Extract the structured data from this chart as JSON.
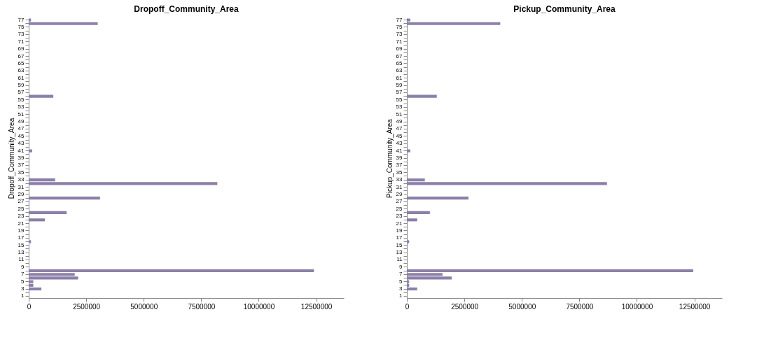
{
  "chart_data": [
    {
      "type": "bar",
      "orientation": "horizontal",
      "title": "Dropoff_Community_Area",
      "ylabel": "Dropoff_Community_Area",
      "categories": [
        "77",
        null,
        "75",
        null,
        "73",
        null,
        "71",
        null,
        "69",
        null,
        "67",
        null,
        "65",
        null,
        "63",
        null,
        "61",
        null,
        "59",
        null,
        "57",
        null,
        "55",
        null,
        "53",
        null,
        "51",
        null,
        "49",
        null,
        "47",
        null,
        "45",
        null,
        "43",
        null,
        "41",
        null,
        "39",
        null,
        "37",
        null,
        "35",
        null,
        "33",
        null,
        "31",
        null,
        "29",
        null,
        "27",
        null,
        "25",
        null,
        "23",
        null,
        "21",
        null,
        "19",
        null,
        "17",
        null,
        "15",
        null,
        "13",
        null,
        "11",
        null,
        "9",
        null,
        "7",
        null,
        "5",
        null,
        "3",
        null,
        "1"
      ],
      "values": [
        100000,
        3000000,
        0,
        0,
        0,
        0,
        0,
        0,
        0,
        0,
        0,
        0,
        0,
        0,
        0,
        0,
        0,
        0,
        0,
        0,
        0,
        1070000,
        0,
        0,
        0,
        0,
        0,
        0,
        0,
        0,
        0,
        0,
        0,
        0,
        0,
        0,
        150000,
        0,
        0,
        0,
        0,
        0,
        0,
        0,
        1150000,
        8200000,
        0,
        0,
        0,
        3100000,
        0,
        0,
        0,
        1650000,
        0,
        700000,
        0,
        0,
        0,
        0,
        0,
        100000,
        0,
        0,
        0,
        0,
        0,
        0,
        0,
        12400000,
        2000000,
        2150000,
        200000,
        200000,
        550000,
        0,
        0
      ],
      "color": "#8c7fa8",
      "xlim": [
        0,
        13700000
      ],
      "xticks": [
        0,
        2500000,
        5000000,
        7500000,
        10000000,
        12500000
      ],
      "grid": false
    },
    {
      "type": "bar",
      "orientation": "horizontal",
      "title": "Pickup_Community_Area",
      "ylabel": "Pickup_Community_Area",
      "categories": [
        "77",
        null,
        "75",
        null,
        "73",
        null,
        "71",
        null,
        "69",
        null,
        "67",
        null,
        "65",
        null,
        "63",
        null,
        "61",
        null,
        "59",
        null,
        "57",
        null,
        "55",
        null,
        "53",
        null,
        "51",
        null,
        "49",
        null,
        "47",
        null,
        "45",
        null,
        "43",
        null,
        "41",
        null,
        "39",
        null,
        "37",
        null,
        "35",
        null,
        "33",
        null,
        "31",
        null,
        "29",
        null,
        "27",
        null,
        "25",
        null,
        "23",
        null,
        "21",
        null,
        "19",
        null,
        "17",
        null,
        "15",
        null,
        "13",
        null,
        "11",
        null,
        "9",
        null,
        "7",
        null,
        "5",
        null,
        "3",
        null,
        "1"
      ],
      "values": [
        150000,
        4060000,
        0,
        0,
        0,
        0,
        0,
        0,
        0,
        0,
        0,
        0,
        0,
        0,
        0,
        0,
        0,
        0,
        0,
        0,
        0,
        1300000,
        0,
        0,
        0,
        0,
        0,
        0,
        0,
        0,
        0,
        0,
        0,
        0,
        0,
        0,
        150000,
        0,
        0,
        0,
        0,
        0,
        0,
        0,
        780000,
        8700000,
        0,
        0,
        0,
        2680000,
        0,
        0,
        0,
        1000000,
        0,
        450000,
        0,
        0,
        0,
        0,
        0,
        100000,
        0,
        0,
        0,
        0,
        0,
        0,
        0,
        12450000,
        1550000,
        1950000,
        100000,
        100000,
        450000,
        0,
        0
      ],
      "color": "#8c7fa8",
      "xlim": [
        0,
        13700000
      ],
      "xticks": [
        0,
        2500000,
        5000000,
        7500000,
        10000000,
        12500000
      ],
      "grid": false
    }
  ]
}
